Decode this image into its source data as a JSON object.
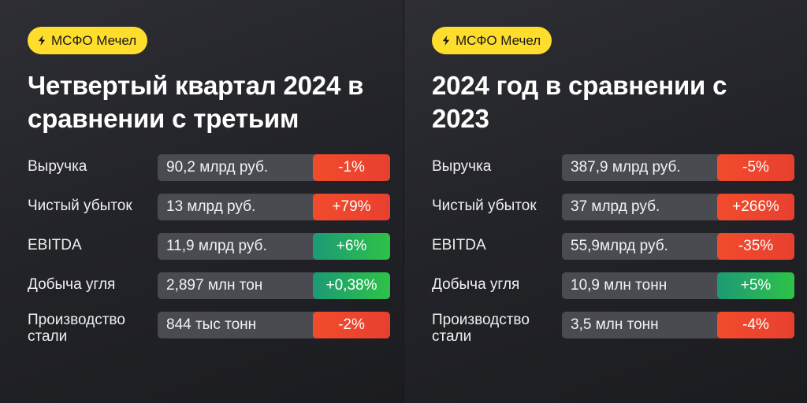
{
  "colors": {
    "badge": "#ffdd2d",
    "negative": "#ee4a2d",
    "positive": "#2ec248",
    "background": "#1d1e22"
  },
  "left": {
    "badge": {
      "icon": "lightning-icon",
      "label": "МСФО Мечел"
    },
    "title": "Четвертый квартал 2024 в сравнении с третьим",
    "rows": [
      {
        "label": "Выручка",
        "value": "90,2 млрд руб.",
        "change": "-1%",
        "trend": "negative"
      },
      {
        "label": "Чистый убыток",
        "value": "13 млрд руб.",
        "change": "+79%",
        "trend": "negative"
      },
      {
        "label": "EBITDA",
        "value": "11,9 млрд руб.",
        "change": "+6%",
        "trend": "positive"
      },
      {
        "label": "Добыча угля",
        "value": "2,897 млн тон",
        "change": "+0,38%",
        "trend": "positive"
      },
      {
        "label": "Производство стали",
        "value": "844 тыс тонн",
        "change": "-2%",
        "trend": "negative"
      }
    ]
  },
  "right": {
    "badge": {
      "icon": "lightning-icon",
      "label": "МСФО Мечел"
    },
    "title": "2024 год в сравнении с 2023",
    "rows": [
      {
        "label": "Выручка",
        "value": "387,9 млрд руб.",
        "change": "-5%",
        "trend": "negative"
      },
      {
        "label": "Чистый убыток",
        "value": "37 млрд руб.",
        "change": "+266%",
        "trend": "negative"
      },
      {
        "label": "EBITDA",
        "value": "55,9млрд руб.",
        "change": "-35%",
        "trend": "negative"
      },
      {
        "label": "Добыча угля",
        "value": "10,9 млн тонн",
        "change": "+5%",
        "trend": "positive"
      },
      {
        "label": "Производство стали",
        "value": "3,5 млн тонн",
        "change": "-4%",
        "trend": "negative"
      }
    ]
  }
}
